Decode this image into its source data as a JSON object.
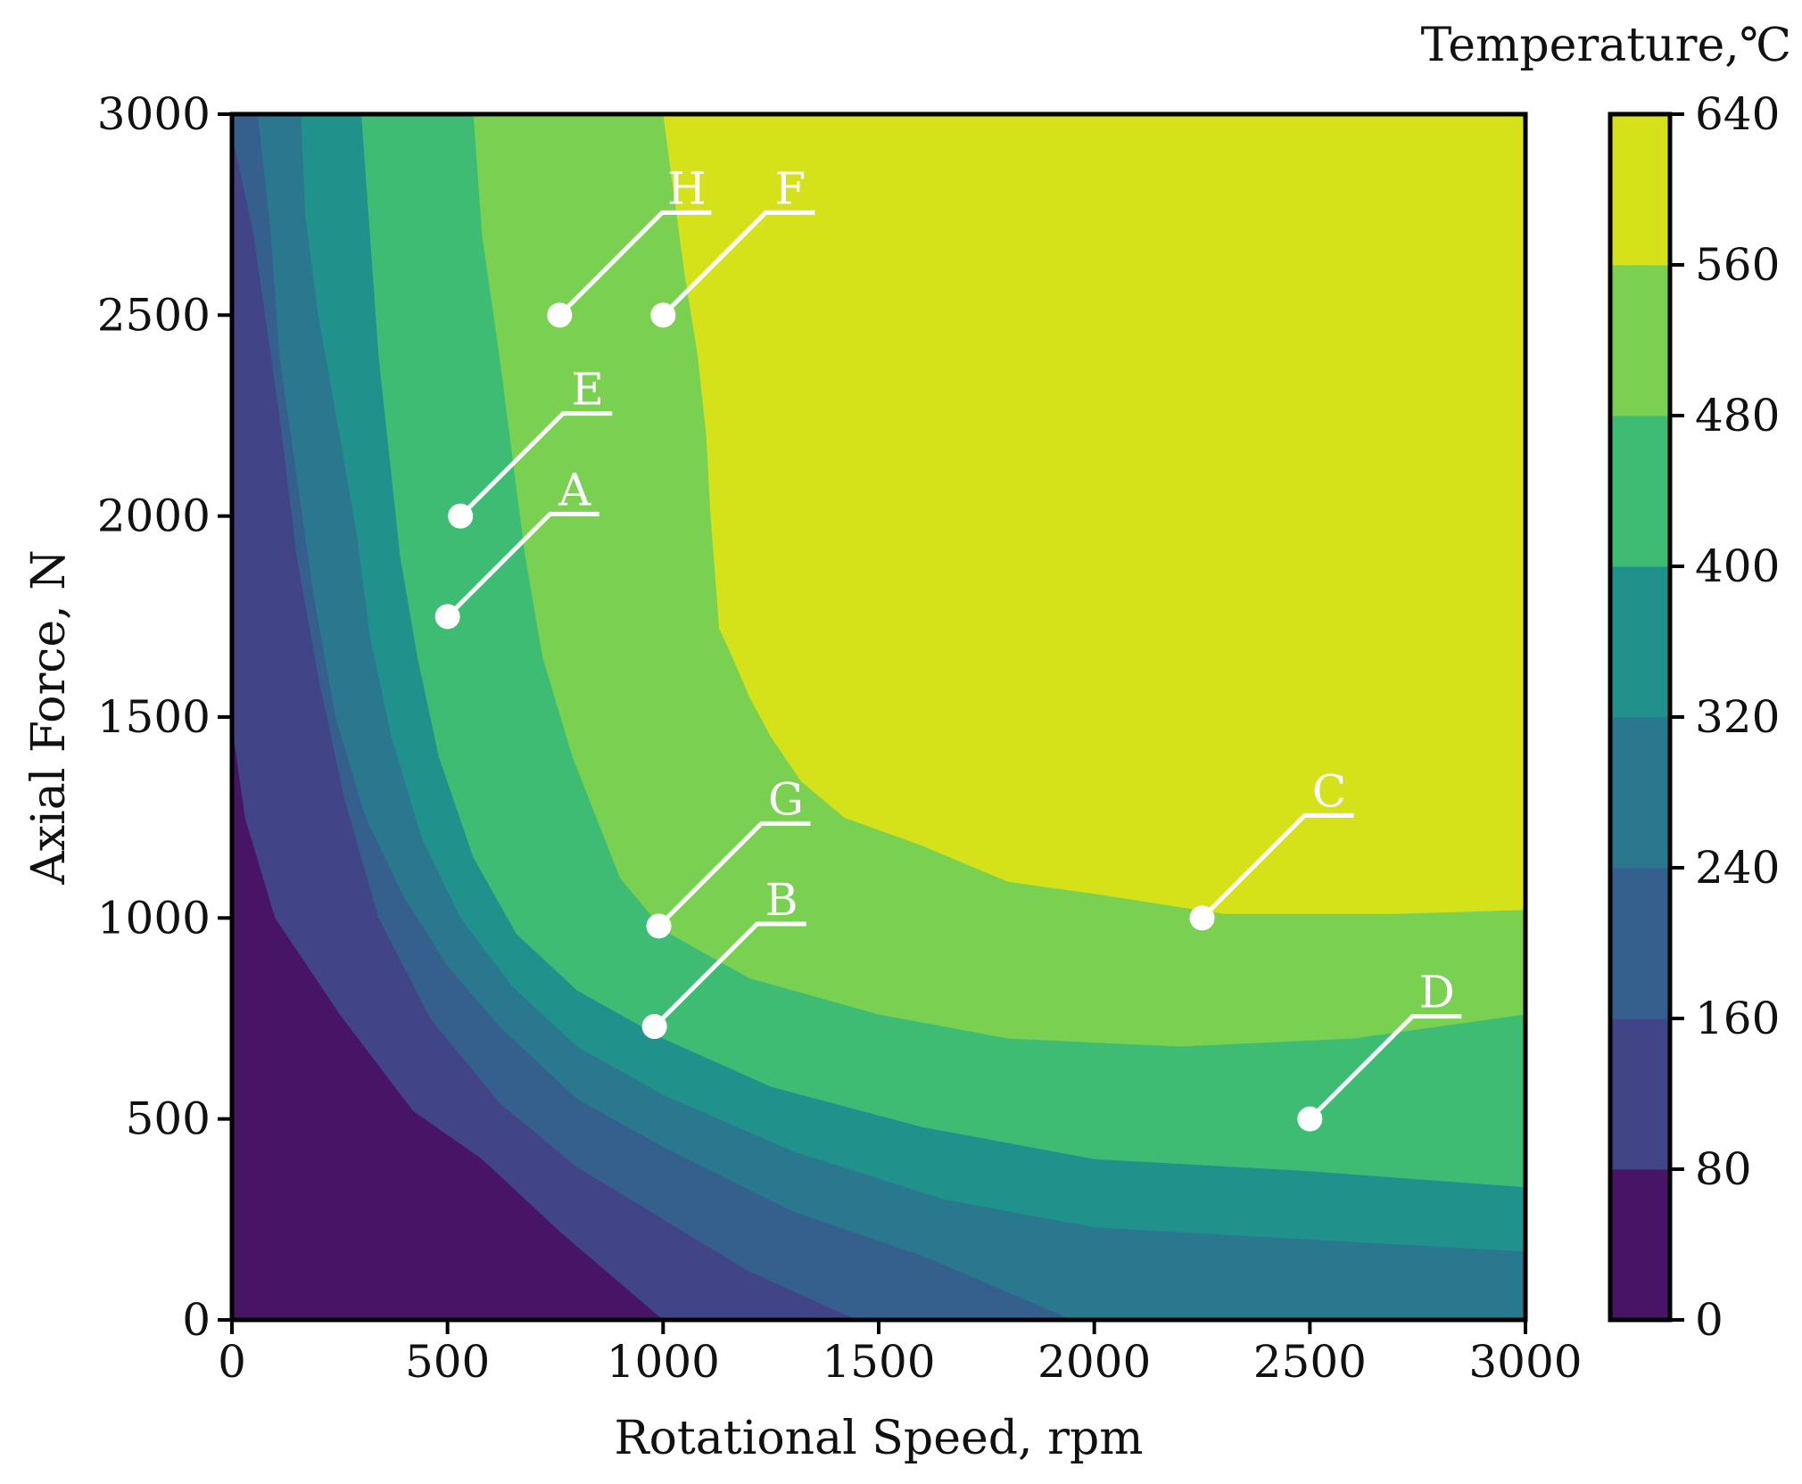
{
  "chart_data": {
    "type": "contour",
    "xlabel": "Rotational Speed, rpm",
    "ylabel": "Axial Force, N",
    "xlim": [
      0,
      3000
    ],
    "ylim": [
      0,
      3000
    ],
    "xticks": [
      "0",
      "500",
      "1000",
      "1500",
      "2000",
      "2500",
      "3000"
    ],
    "yticks": [
      "0",
      "500",
      "1000",
      "1500",
      "2000",
      "2500",
      "3000"
    ],
    "colorbar": {
      "title": "Temperature,℃",
      "levels": [
        0,
        80,
        160,
        240,
        320,
        400,
        480,
        560,
        640
      ],
      "labels": [
        "0",
        "80",
        "160",
        "240",
        "320",
        "400",
        "480",
        "560",
        "640"
      ],
      "colors": [
        "#471466",
        "#414487",
        "#355f8d",
        "#2a788e",
        "#21918c",
        "#3fbc73",
        "#7ad151",
        "#d5e21a"
      ]
    },
    "level_boundaries": [
      {
        "level": 80,
        "points": [
          [
            0,
            1480
          ],
          [
            30,
            1250
          ],
          [
            100,
            1000
          ],
          [
            250,
            760
          ],
          [
            420,
            520
          ],
          [
            580,
            400
          ],
          [
            760,
            220
          ],
          [
            1000,
            0
          ]
        ]
      },
      {
        "level": 160,
        "points": [
          [
            0,
            2950
          ],
          [
            50,
            2700
          ],
          [
            110,
            2250
          ],
          [
            150,
            1900
          ],
          [
            200,
            1600
          ],
          [
            260,
            1300
          ],
          [
            340,
            1000
          ],
          [
            460,
            750
          ],
          [
            620,
            540
          ],
          [
            800,
            380
          ],
          [
            1000,
            250
          ],
          [
            1200,
            120
          ],
          [
            1450,
            0
          ]
        ]
      },
      {
        "level": 240,
        "points": [
          [
            60,
            3000
          ],
          [
            90,
            2700
          ],
          [
            110,
            2400
          ],
          [
            150,
            2100
          ],
          [
            190,
            1800
          ],
          [
            240,
            1500
          ],
          [
            310,
            1250
          ],
          [
            400,
            1050
          ],
          [
            500,
            880
          ],
          [
            620,
            730
          ],
          [
            800,
            550
          ],
          [
            1000,
            430
          ],
          [
            1300,
            270
          ],
          [
            1600,
            160
          ],
          [
            1950,
            0
          ]
        ]
      },
      {
        "level": 320,
        "points": [
          [
            160,
            3000
          ],
          [
            170,
            2750
          ],
          [
            200,
            2500
          ],
          [
            250,
            2200
          ],
          [
            290,
            1950
          ],
          [
            320,
            1700
          ],
          [
            370,
            1450
          ],
          [
            440,
            1200
          ],
          [
            530,
            1000
          ],
          [
            650,
            830
          ],
          [
            800,
            680
          ],
          [
            1000,
            560
          ],
          [
            1300,
            420
          ],
          [
            1650,
            300
          ],
          [
            2000,
            230
          ],
          [
            2500,
            200
          ],
          [
            3000,
            170
          ]
        ]
      },
      {
        "level": 400,
        "points": [
          [
            300,
            3000
          ],
          [
            320,
            2700
          ],
          [
            340,
            2400
          ],
          [
            370,
            2100
          ],
          [
            390,
            1900
          ],
          [
            430,
            1650
          ],
          [
            480,
            1400
          ],
          [
            560,
            1150
          ],
          [
            660,
            960
          ],
          [
            800,
            820
          ],
          [
            1000,
            700
          ],
          [
            1250,
            580
          ],
          [
            1600,
            480
          ],
          [
            2000,
            400
          ],
          [
            2500,
            370
          ],
          [
            3000,
            330
          ]
        ]
      },
      {
        "level": 480,
        "points": [
          [
            560,
            3000
          ],
          [
            580,
            2700
          ],
          [
            620,
            2400
          ],
          [
            650,
            2150
          ],
          [
            680,
            1900
          ],
          [
            720,
            1650
          ],
          [
            790,
            1400
          ],
          [
            900,
            1100
          ],
          [
            1000,
            970
          ],
          [
            1200,
            850
          ],
          [
            1500,
            760
          ],
          [
            1800,
            700
          ],
          [
            2200,
            680
          ],
          [
            2600,
            700
          ],
          [
            3000,
            760
          ]
        ]
      },
      {
        "level": 560,
        "points": [
          [
            1000,
            3000
          ],
          [
            1050,
            2600
          ],
          [
            1080,
            2400
          ],
          [
            1100,
            2200
          ],
          [
            1110,
            2000
          ],
          [
            1130,
            1720
          ],
          [
            1160,
            1650
          ],
          [
            1200,
            1550
          ],
          [
            1250,
            1450
          ],
          [
            1320,
            1340
          ],
          [
            1420,
            1250
          ],
          [
            1600,
            1180
          ],
          [
            1800,
            1090
          ],
          [
            2000,
            1060
          ],
          [
            2300,
            1010
          ],
          [
            2700,
            1010
          ],
          [
            3000,
            1020
          ]
        ]
      }
    ],
    "points": [
      {
        "name": "A",
        "x": 500,
        "y": 1750
      },
      {
        "name": "B",
        "x": 980,
        "y": 730
      },
      {
        "name": "C",
        "x": 2250,
        "y": 1000
      },
      {
        "name": "D",
        "x": 2500,
        "y": 500
      },
      {
        "name": "E",
        "x": 530,
        "y": 2000
      },
      {
        "name": "F",
        "x": 1000,
        "y": 2500
      },
      {
        "name": "G",
        "x": 990,
        "y": 980
      },
      {
        "name": "H",
        "x": 760,
        "y": 2500
      }
    ]
  }
}
